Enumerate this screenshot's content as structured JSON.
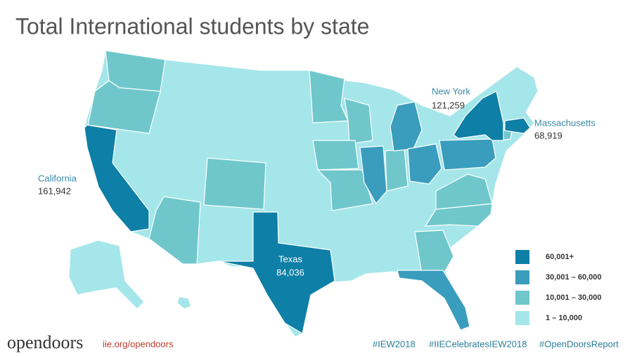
{
  "title": "Total International students by state",
  "callouts": [
    {
      "state": "California",
      "value": "161,942"
    },
    {
      "state": "Texas",
      "value": "84,036"
    },
    {
      "state": "New York",
      "value": "121,259"
    },
    {
      "state": "Massachusetts",
      "value": "68,919"
    }
  ],
  "legend": [
    {
      "label": "60,001+",
      "color": "#0e7fa6"
    },
    {
      "label": "30,001 – 60,000",
      "color": "#3a9dbd"
    },
    {
      "label": "10,001 – 30,000",
      "color": "#6fc7cc"
    },
    {
      "label": "1 – 10,000",
      "color": "#a5e6ea"
    }
  ],
  "footer": {
    "logo": "opendoors",
    "url": "iie.org/opendoors",
    "hashtags": [
      "#IEW2018",
      "#IIECelebratesIEW2018",
      "#OpenDoorsReport"
    ]
  }
}
